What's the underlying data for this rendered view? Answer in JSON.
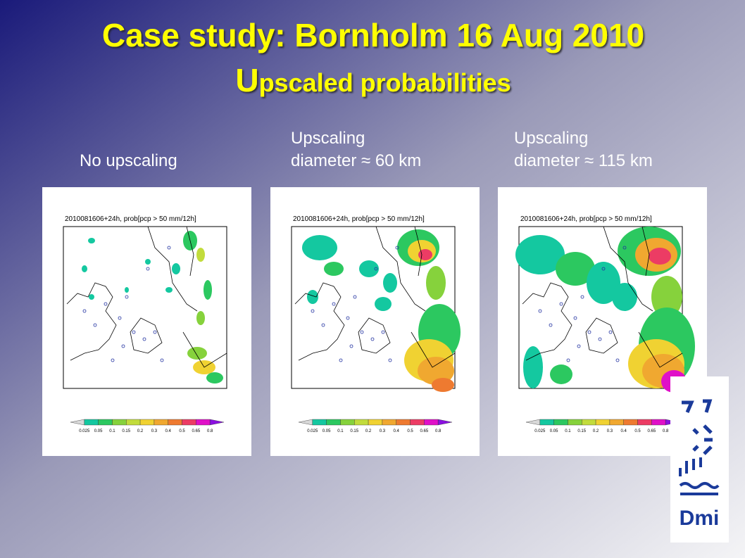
{
  "header": {
    "title_line1": "Case study: Bornholm 16 Aug 2010",
    "title_line2_initial": "U",
    "title_line2_rest": "pscaled probabilities"
  },
  "panels": [
    {
      "label_lines": [
        "No upscaling"
      ],
      "map_header": "2010081606+24h, prob[pcp > 50 mm/12h]"
    },
    {
      "label_lines": [
        "Upscaling",
        "diameter ≈ 60 km"
      ],
      "map_header": "2010081606+24h, prob[pcp > 50 mm/12h]"
    },
    {
      "label_lines": [
        "Upscaling",
        "diameter ≈ 115 km"
      ],
      "map_header": "2010081606+24h, prob[pcp > 50 mm/12h]"
    }
  ],
  "colorbar": {
    "labels": [
      "0.025",
      "0.05",
      "0.1",
      "0.15",
      "0.2",
      "0.3",
      "0.4",
      "0.5",
      "0.65",
      "0.8"
    ],
    "colors": [
      "#d8d8d8",
      "#14c8a0",
      "#2cc860",
      "#86d23c",
      "#c2dc3c",
      "#f0d232",
      "#f0a830",
      "#ee7a30",
      "#ec3c64",
      "#e010c8",
      "#8a10e0"
    ]
  },
  "logo": {
    "text": "Dmi"
  }
}
